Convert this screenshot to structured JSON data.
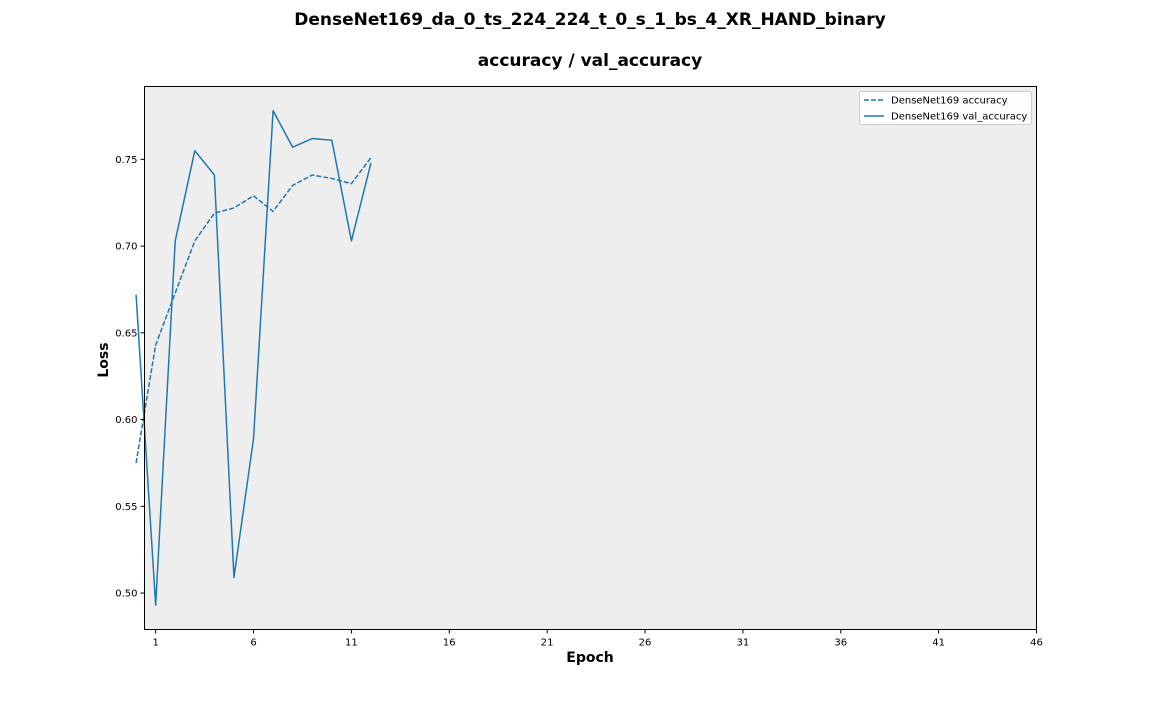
{
  "chart_data": {
    "type": "line",
    "title": "DenseNet169_da_0_ts_224_224_t_0_s_1_bs_4_XR_HAND_binary",
    "subtitle": "accuracy / val_accuracy",
    "xlabel": "Epoch",
    "ylabel": "Loss",
    "xlim": [
      0.43,
      46
    ],
    "ylim": [
      0.479,
      0.792
    ],
    "x_ticks": [
      1,
      6,
      11,
      16,
      21,
      26,
      31,
      36,
      41,
      46
    ],
    "y_ticks": [
      0.5,
      0.55,
      0.6,
      0.65,
      0.7,
      0.75
    ],
    "x": [
      0,
      1,
      2,
      3,
      4,
      5,
      6,
      7,
      8,
      9,
      10,
      11,
      12
    ],
    "grid": false,
    "legend_position": "top-right",
    "background_color": "#eeeeee",
    "series": [
      {
        "name": "DenseNet169 accuracy",
        "line_style": "dashed",
        "color": "#1f77b4",
        "values": [
          0.575,
          0.643,
          0.673,
          0.703,
          0.719,
          0.722,
          0.729,
          0.72,
          0.735,
          0.741,
          0.739,
          0.736,
          0.751
        ]
      },
      {
        "name": "DenseNet169 val_accuracy",
        "line_style": "solid",
        "color": "#1f77b4",
        "values": [
          0.672,
          0.493,
          0.703,
          0.755,
          0.741,
          0.509,
          0.589,
          0.778,
          0.757,
          0.762,
          0.761,
          0.703,
          0.748
        ]
      }
    ]
  }
}
